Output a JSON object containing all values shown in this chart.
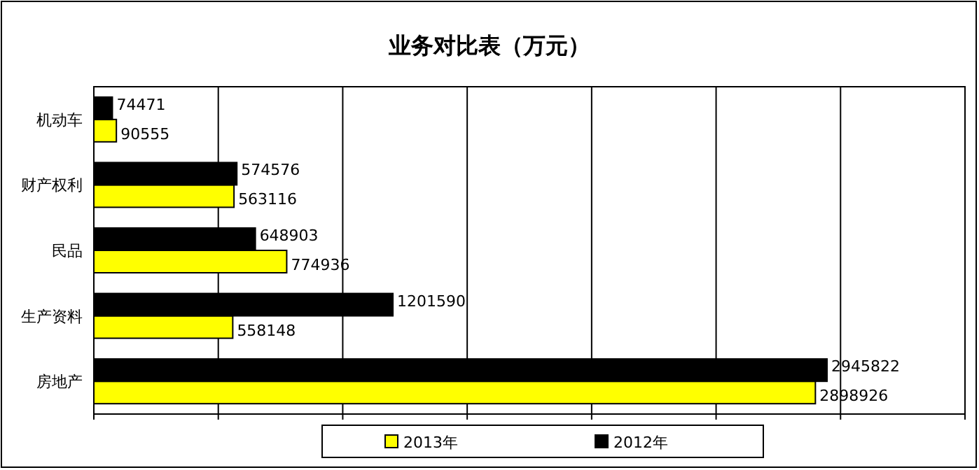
{
  "chart_data": {
    "type": "bar",
    "orientation": "horizontal",
    "title": "业务对比表（万元）",
    "categories": [
      "机动车",
      "财产权利",
      "民品",
      "生产资料",
      "房地产"
    ],
    "series": [
      {
        "name": "2013年",
        "color": "#ffff00",
        "values": [
          90555,
          563116,
          774936,
          558148,
          2898926
        ]
      },
      {
        "name": "2012年",
        "color": "#000000",
        "values": [
          74471,
          574576,
          648903,
          1201590,
          2945822
        ]
      }
    ],
    "xlim": [
      0,
      3500000
    ],
    "xticks": [
      {
        "value": 0,
        "label": null
      },
      {
        "value": 500000,
        "label": null
      },
      {
        "value": 1000000,
        "label": null
      },
      {
        "value": 1500000,
        "label": null
      },
      {
        "value": 2000000,
        "label": null
      },
      {
        "value": 2500000,
        "label": null
      },
      {
        "value": 3000000,
        "label": null
      },
      {
        "value": 3500000,
        "label": null
      }
    ],
    "grid": "x",
    "legend": "bottom",
    "tick_labels": "y",
    "data_labels": true
  }
}
